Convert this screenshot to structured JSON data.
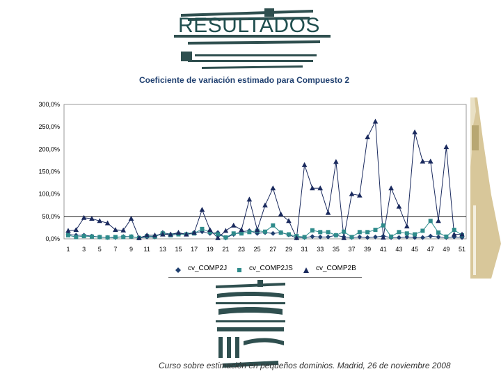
{
  "slide": {
    "title": "RESULTADOS",
    "footer": "Curso sobre estimación en pequeños dominios. Madrid, 26 de noviembre 2008"
  },
  "chart_data": {
    "type": "line",
    "title": "Coeficiente de variación estimado para Compuesto 2",
    "xlabel": "",
    "ylabel": "",
    "ylim": [
      0,
      300
    ],
    "y_ticks": [
      "300,0%",
      "250,0%",
      "200,0%",
      "150,0%",
      "100,0%",
      "50,0%",
      "0,0%"
    ],
    "x_ticks": [
      "1",
      "3",
      "5",
      "7",
      "9",
      "11",
      "13",
      "15",
      "17",
      "19",
      "21",
      "23",
      "25",
      "27",
      "29",
      "31",
      "33",
      "35",
      "37",
      "39",
      "41",
      "43",
      "45",
      "47",
      "49",
      "51"
    ],
    "grid": "horizontal gridline at 50%",
    "legend_position": "bottom",
    "x": [
      1,
      2,
      3,
      4,
      5,
      6,
      7,
      8,
      9,
      10,
      11,
      12,
      13,
      14,
      15,
      16,
      17,
      18,
      19,
      20,
      21,
      22,
      23,
      24,
      25,
      26,
      27,
      28,
      29,
      30,
      31,
      32,
      33,
      34,
      35,
      36,
      37,
      38,
      39,
      40,
      41,
      42,
      43,
      44,
      45,
      46,
      47,
      48,
      49,
      50,
      51
    ],
    "series": [
      {
        "name": "cv_COMP2J",
        "marker": "diamond",
        "color": "#1f3f6f",
        "values": [
          10,
          8,
          8,
          6,
          4,
          3,
          3,
          5,
          5,
          2,
          4,
          4,
          14,
          10,
          12,
          11,
          14,
          16,
          12,
          14,
          2,
          10,
          16,
          18,
          12,
          14,
          12,
          14,
          9,
          2,
          3,
          5,
          4,
          4,
          8,
          4,
          3,
          4,
          3,
          4,
          6,
          3,
          3,
          4,
          3,
          3,
          6,
          4,
          3,
          4,
          3
        ]
      },
      {
        "name": "cv_COMP2JS",
        "marker": "square",
        "color": "#2e8b8b",
        "values": [
          8,
          4,
          6,
          5,
          4,
          3,
          4,
          4,
          5,
          2,
          6,
          5,
          12,
          8,
          10,
          10,
          12,
          22,
          15,
          10,
          3,
          12,
          12,
          15,
          18,
          16,
          30,
          14,
          10,
          6,
          4,
          19,
          15,
          15,
          8,
          16,
          4,
          15,
          15,
          20,
          30,
          5,
          15,
          12,
          10,
          18,
          40,
          14,
          5,
          20,
          8
        ]
      },
      {
        "name": "cv_COMP2B",
        "marker": "triangle",
        "color": "#1a2a5e",
        "values": [
          18,
          20,
          47,
          45,
          40,
          35,
          20,
          19,
          45,
          2,
          8,
          8,
          10,
          10,
          14,
          10,
          14,
          65,
          20,
          2,
          18,
          30,
          20,
          88,
          20,
          75,
          113,
          55,
          40,
          2,
          165,
          113,
          113,
          58,
          172,
          2,
          100,
          97,
          227,
          262,
          3,
          113,
          72,
          28,
          238,
          173,
          173,
          40,
          205,
          10,
          10
        ]
      }
    ]
  },
  "colors": {
    "title_text": "#1f4e4e",
    "chart_title": "#1f3f6f",
    "deco_dark": "#2f4f4f",
    "side_panel": "#d8c79a"
  }
}
